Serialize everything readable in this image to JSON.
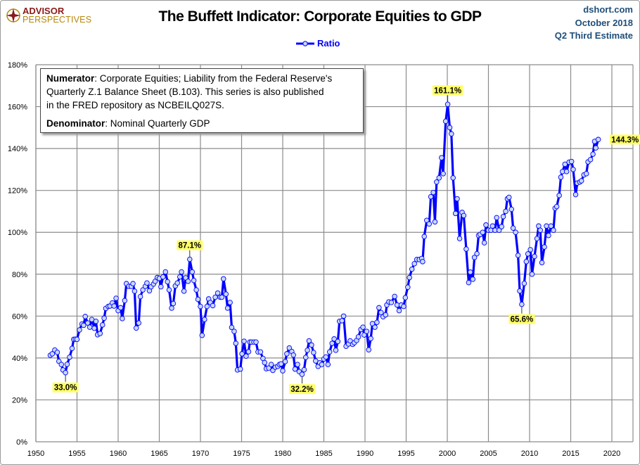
{
  "header": {
    "title": "The Buffett Indicator: Corporate Equities to GDP",
    "source": "dshort.com",
    "date": "October 2018",
    "estimate": "Q2 Third Estimate",
    "logo_text_1": "ADVISOR",
    "logo_text_2": "PERSPECTIVES"
  },
  "note": {
    "numerator_label": "Numerator",
    "numerator_text_1": ": Corporate Equities; Liability from the Federal Reserve's",
    "numerator_text_2": "Quarterly Z.1 Balance Sheet (B.103). This series is also published",
    "numerator_text_3": "in the FRED repository  as NCBEILQ027S.",
    "denominator_label": "Denominator",
    "denominator_text": ": Nominal Quarterly GDP"
  },
  "chart_data": {
    "type": "line",
    "title": "The Buffett Indicator: Corporate Equities to GDP",
    "xlabel": "",
    "ylabel": "",
    "xlim": [
      1950,
      2022.5
    ],
    "ylim": [
      0,
      180
    ],
    "x_ticks": [
      "1950",
      "1955",
      "1960",
      "1965",
      "1970",
      "1975",
      "1980",
      "1985",
      "1990",
      "1995",
      "2000",
      "2005",
      "2010",
      "2015",
      "2020"
    ],
    "y_ticks": [
      "0%",
      "20%",
      "40%",
      "60%",
      "80%",
      "100%",
      "120%",
      "140%",
      "160%",
      "180%"
    ],
    "grid": true,
    "legend": "top-center",
    "colors": {
      "line": "#0000ff",
      "marker_fill": "#c6d9f7",
      "label_bg": "#ffff66"
    },
    "series": [
      {
        "name": "Ratio",
        "points": [
          [
            1951.75,
            41.3
          ],
          [
            1952.0,
            42.0
          ],
          [
            1952.3,
            43.8
          ],
          [
            1952.6,
            42.7
          ],
          [
            1952.8,
            38.4
          ],
          [
            1953.1,
            36.9
          ],
          [
            1953.3,
            34.3
          ],
          [
            1953.6,
            33.0
          ],
          [
            1953.8,
            37.0
          ],
          [
            1954.1,
            40.4
          ],
          [
            1954.4,
            44.6
          ],
          [
            1954.6,
            48.9
          ],
          [
            1954.8,
            49.0
          ],
          [
            1955.0,
            48.9
          ],
          [
            1955.3,
            53.4
          ],
          [
            1955.6,
            56.2
          ],
          [
            1955.8,
            55.6
          ],
          [
            1956.0,
            59.8
          ],
          [
            1956.3,
            56.7
          ],
          [
            1956.55,
            54.7
          ],
          [
            1956.8,
            58.4
          ],
          [
            1957.1,
            54.2
          ],
          [
            1957.3,
            57.5
          ],
          [
            1957.5,
            51.1
          ],
          [
            1957.8,
            51.7
          ],
          [
            1958.1,
            55.8
          ],
          [
            1958.3,
            59.0
          ],
          [
            1958.5,
            63.7
          ],
          [
            1958.8,
            64.6
          ],
          [
            1959.0,
            64.8
          ],
          [
            1959.3,
            66.3
          ],
          [
            1959.5,
            64.8
          ],
          [
            1959.75,
            68.5
          ],
          [
            1960.0,
            62.6
          ],
          [
            1960.3,
            64.0
          ],
          [
            1960.5,
            58.8
          ],
          [
            1960.8,
            67.4
          ],
          [
            1961.0,
            75.5
          ],
          [
            1961.3,
            74.2
          ],
          [
            1961.6,
            74.2
          ],
          [
            1961.8,
            75.5
          ],
          [
            1962.0,
            71.9
          ],
          [
            1962.2,
            54.3
          ],
          [
            1962.5,
            56.7
          ],
          [
            1962.7,
            69.3
          ],
          [
            1963.0,
            72.5
          ],
          [
            1963.3,
            74.2
          ],
          [
            1963.5,
            75.8
          ],
          [
            1963.8,
            72.1
          ],
          [
            1964.0,
            74.0
          ],
          [
            1964.3,
            75.3
          ],
          [
            1964.5,
            76.6
          ],
          [
            1964.75,
            78.4
          ],
          [
            1965.0,
            78.0
          ],
          [
            1965.2,
            74.0
          ],
          [
            1965.45,
            78.7
          ],
          [
            1965.75,
            81.1
          ],
          [
            1966.0,
            76.4
          ],
          [
            1966.2,
            72.5
          ],
          [
            1966.5,
            63.8
          ],
          [
            1966.7,
            66.0
          ],
          [
            1966.95,
            74.4
          ],
          [
            1967.2,
            75.8
          ],
          [
            1967.5,
            78.7
          ],
          [
            1967.7,
            81.1
          ],
          [
            1968.0,
            71.9
          ],
          [
            1968.2,
            78.3
          ],
          [
            1968.5,
            76.6
          ],
          [
            1968.7,
            87.1
          ],
          [
            1969.0,
            81.1
          ],
          [
            1969.2,
            77.0
          ],
          [
            1969.5,
            72.5
          ],
          [
            1969.7,
            68.0
          ],
          [
            1970.0,
            64.6
          ],
          [
            1970.2,
            50.8
          ],
          [
            1970.5,
            58.4
          ],
          [
            1970.8,
            64.6
          ],
          [
            1971.0,
            68.2
          ],
          [
            1971.2,
            66.5
          ],
          [
            1971.5,
            65.0
          ],
          [
            1971.8,
            69.0
          ],
          [
            1972.1,
            71.0
          ],
          [
            1972.4,
            69.0
          ],
          [
            1972.6,
            69.0
          ],
          [
            1972.8,
            77.8
          ],
          [
            1973.1,
            70.5
          ],
          [
            1973.3,
            63.8
          ],
          [
            1973.6,
            66.5
          ],
          [
            1973.8,
            54.6
          ],
          [
            1974.1,
            52.7
          ],
          [
            1974.3,
            47.0
          ],
          [
            1974.5,
            34.3
          ],
          [
            1974.85,
            34.7
          ],
          [
            1975.05,
            42.0
          ],
          [
            1975.3,
            48.0
          ],
          [
            1975.55,
            40.9
          ],
          [
            1975.85,
            43.0
          ],
          [
            1976.0,
            47.6
          ],
          [
            1976.2,
            47.6
          ],
          [
            1976.5,
            47.6
          ],
          [
            1976.75,
            47.6
          ],
          [
            1977.0,
            42.9
          ],
          [
            1977.3,
            42.9
          ],
          [
            1977.6,
            39.8
          ],
          [
            1977.8,
            37.8
          ],
          [
            1978.0,
            34.9
          ],
          [
            1978.3,
            35.2
          ],
          [
            1978.6,
            36.9
          ],
          [
            1978.8,
            34.1
          ],
          [
            1979.1,
            35.6
          ],
          [
            1979.4,
            36.0
          ],
          [
            1979.6,
            36.9
          ],
          [
            1979.8,
            37.2
          ],
          [
            1980.0,
            33.9
          ],
          [
            1980.3,
            38.3
          ],
          [
            1980.5,
            42.0
          ],
          [
            1980.8,
            44.8
          ],
          [
            1981.1,
            43.1
          ],
          [
            1981.3,
            41.4
          ],
          [
            1981.5,
            34.7
          ],
          [
            1981.8,
            36.9
          ],
          [
            1982.0,
            33.5
          ],
          [
            1982.35,
            32.2
          ],
          [
            1982.6,
            34.4
          ],
          [
            1982.8,
            40.3
          ],
          [
            1983.0,
            43.7
          ],
          [
            1983.2,
            48.2
          ],
          [
            1983.5,
            46.2
          ],
          [
            1983.75,
            42.6
          ],
          [
            1984.0,
            38.6
          ],
          [
            1984.3,
            36.0
          ],
          [
            1984.5,
            37.7
          ],
          [
            1984.75,
            36.9
          ],
          [
            1985.0,
            39.5
          ],
          [
            1985.25,
            40.5
          ],
          [
            1985.5,
            36.9
          ],
          [
            1985.7,
            42.9
          ],
          [
            1986.0,
            47.0
          ],
          [
            1986.25,
            49.1
          ],
          [
            1986.45,
            43.7
          ],
          [
            1986.7,
            47.9
          ],
          [
            1986.9,
            57.5
          ],
          [
            1987.2,
            57.8
          ],
          [
            1987.4,
            60.0
          ],
          [
            1987.7,
            45.6
          ],
          [
            1988.0,
            46.7
          ],
          [
            1988.2,
            48.2
          ],
          [
            1988.5,
            46.5
          ],
          [
            1988.7,
            47.3
          ],
          [
            1988.98,
            48.4
          ],
          [
            1989.2,
            50.1
          ],
          [
            1989.5,
            53.6
          ],
          [
            1989.75,
            54.7
          ],
          [
            1989.9,
            51.0
          ],
          [
            1990.2,
            52.7
          ],
          [
            1990.45,
            43.9
          ],
          [
            1990.7,
            49.3
          ],
          [
            1990.9,
            56.4
          ],
          [
            1991.2,
            54.7
          ],
          [
            1991.45,
            57.0
          ],
          [
            1991.7,
            64.0
          ],
          [
            1991.95,
            61.7
          ],
          [
            1992.2,
            59.7
          ],
          [
            1992.5,
            60.6
          ],
          [
            1992.65,
            65.3
          ],
          [
            1992.9,
            66.8
          ],
          [
            1993.2,
            66.5
          ],
          [
            1993.6,
            69.4
          ],
          [
            1993.9,
            65.3
          ],
          [
            1994.15,
            62.6
          ],
          [
            1994.4,
            65.3
          ],
          [
            1994.7,
            64.6
          ],
          [
            1994.9,
            68.8
          ],
          [
            1995.2,
            73.8
          ],
          [
            1995.4,
            78.4
          ],
          [
            1995.7,
            82.4
          ],
          [
            1996.0,
            85.0
          ],
          [
            1996.3,
            87.0
          ],
          [
            1996.6,
            87.0
          ],
          [
            1996.9,
            87.5
          ],
          [
            1997.0,
            86.0
          ],
          [
            1997.2,
            98.0
          ],
          [
            1997.5,
            105.7
          ],
          [
            1997.8,
            104.0
          ],
          [
            1998.0,
            117.0
          ],
          [
            1998.3,
            119.0
          ],
          [
            1998.5,
            105.0
          ],
          [
            1998.7,
            124.0
          ],
          [
            1999.0,
            126.0
          ],
          [
            1999.3,
            135.6
          ],
          [
            1999.5,
            128.0
          ],
          [
            1999.8,
            153.0
          ],
          [
            2000.05,
            161.1
          ],
          [
            2000.3,
            150.0
          ],
          [
            2000.5,
            147.0
          ],
          [
            2000.7,
            126.0
          ],
          [
            2001.0,
            109.0
          ],
          [
            2001.2,
            116.0
          ],
          [
            2001.5,
            97.0
          ],
          [
            2001.8,
            109.5
          ],
          [
            2002.0,
            108.0
          ],
          [
            2002.3,
            92.0
          ],
          [
            2002.6,
            76.0
          ],
          [
            2002.8,
            81.0
          ],
          [
            2003.1,
            77.6
          ],
          [
            2003.3,
            88.0
          ],
          [
            2003.6,
            89.8
          ],
          [
            2003.8,
            98.5
          ],
          [
            2004.0,
            99.0
          ],
          [
            2004.3,
            100.0
          ],
          [
            2004.5,
            95.0
          ],
          [
            2004.7,
            103.5
          ],
          [
            2005.0,
            101.0
          ],
          [
            2005.3,
            101.0
          ],
          [
            2005.5,
            103.0
          ],
          [
            2005.8,
            101.0
          ],
          [
            2006.0,
            107.0
          ],
          [
            2006.3,
            101.0
          ],
          [
            2006.6,
            102.7
          ],
          [
            2006.8,
            107.5
          ],
          [
            2007.1,
            110.0
          ],
          [
            2007.3,
            116.0
          ],
          [
            2007.5,
            116.7
          ],
          [
            2007.8,
            111.0
          ],
          [
            2008.0,
            102.0
          ],
          [
            2008.3,
            100.0
          ],
          [
            2008.6,
            89.0
          ],
          [
            2008.8,
            72.0
          ],
          [
            2009.05,
            65.6
          ],
          [
            2009.35,
            75.6
          ],
          [
            2009.6,
            86.0
          ],
          [
            2009.8,
            89.7
          ],
          [
            2010.1,
            91.7
          ],
          [
            2010.3,
            80.0
          ],
          [
            2010.6,
            88.5
          ],
          [
            2010.9,
            97.0
          ],
          [
            2011.1,
            103.0
          ],
          [
            2011.3,
            101.0
          ],
          [
            2011.5,
            85.5
          ],
          [
            2011.8,
            93.0
          ],
          [
            2012.05,
            103.0
          ],
          [
            2012.3,
            98.5
          ],
          [
            2012.6,
            103.0
          ],
          [
            2012.9,
            101.0
          ],
          [
            2013.1,
            111.5
          ],
          [
            2013.3,
            112.3
          ],
          [
            2013.6,
            117.6
          ],
          [
            2013.8,
            126.3
          ],
          [
            2014.0,
            129.0
          ],
          [
            2014.3,
            132.5
          ],
          [
            2014.5,
            129.0
          ],
          [
            2014.8,
            133.5
          ],
          [
            2015.1,
            133.8
          ],
          [
            2015.3,
            130.0
          ],
          [
            2015.6,
            118.0
          ],
          [
            2015.8,
            123.5
          ],
          [
            2016.1,
            124.0
          ],
          [
            2016.3,
            124.6
          ],
          [
            2016.6,
            127.4
          ],
          [
            2016.9,
            128.0
          ],
          [
            2017.1,
            133.6
          ],
          [
            2017.4,
            134.7
          ],
          [
            2017.7,
            137.3
          ],
          [
            2017.9,
            143.4
          ],
          [
            2018.05,
            140.3
          ],
          [
            2018.35,
            144.3
          ]
        ]
      }
    ],
    "annotations": [
      {
        "text": "33.0%",
        "x": 1953.6,
        "y": 33.0,
        "position": "below"
      },
      {
        "text": "87.1%",
        "x": 1968.7,
        "y": 87.1,
        "position": "above"
      },
      {
        "text": "32.2%",
        "x": 1982.35,
        "y": 32.2,
        "position": "below"
      },
      {
        "text": "161.1%",
        "x": 2000.05,
        "y": 161.1,
        "position": "above"
      },
      {
        "text": "65.6%",
        "x": 2009.05,
        "y": 65.6,
        "position": "below"
      },
      {
        "text": "144.3%",
        "x": 2018.35,
        "y": 144.3,
        "position": "right"
      }
    ]
  }
}
